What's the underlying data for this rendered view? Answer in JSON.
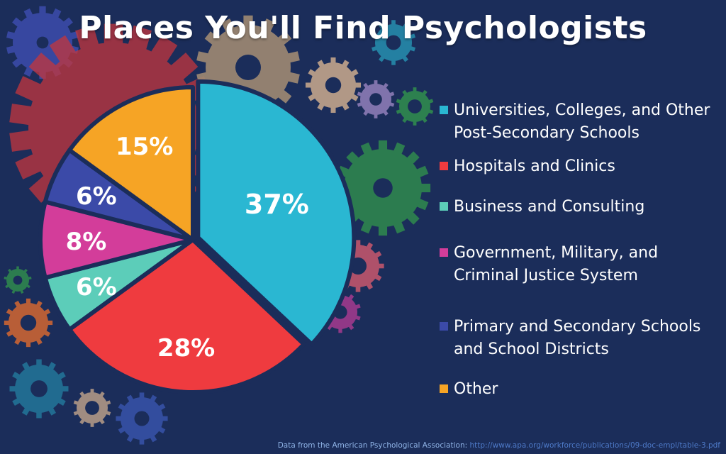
{
  "title": "Places You'll Find Psychologists",
  "chart_data": {
    "type": "pie",
    "slices": [
      {
        "label": "Universities, Colleges, and Other Post-Secondary Schools",
        "value": 37,
        "display": "37%",
        "color": "#2ab7d2"
      },
      {
        "label": "Hospitals and Clinics",
        "value": 28,
        "display": "28%",
        "color": "#ef3b3f"
      },
      {
        "label": "Business and Consulting",
        "value": 6,
        "display": "6%",
        "color": "#5ccdb9"
      },
      {
        "label": "Government, Military, and Criminal Justice System",
        "value": 8,
        "display": "8%",
        "color": "#d33d9a"
      },
      {
        "label": "Primary and Secondary Schools and School Districts",
        "value": 6,
        "display": "6%",
        "color": "#3b4aa8"
      },
      {
        "label": "Other",
        "value": 15,
        "display": "15%",
        "color": "#f6a425"
      }
    ],
    "legend_position": "right"
  },
  "source": {
    "prefix": "Data from the American Psychological Association:",
    "link": "http://www.apa.org/workforce/publications/09-doc-empl/table-3.pdf"
  },
  "colors": {
    "background": "#1b2d5a",
    "text": "#ffffff"
  }
}
